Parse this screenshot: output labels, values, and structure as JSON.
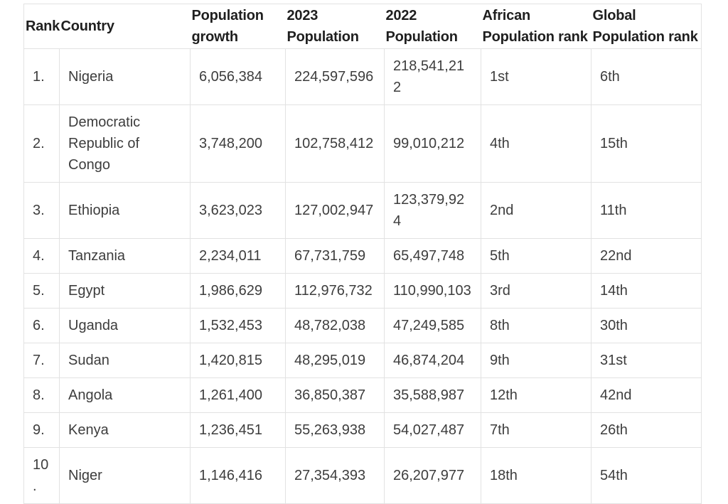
{
  "page": {
    "background": "#ffffff"
  },
  "theme": {
    "border_color": "#e2e2e2",
    "header_text_color": "#1f1f1f",
    "body_text_color": "#3d3d3d",
    "table_background": "#ffffff"
  },
  "chart_data": {
    "type": "table",
    "legend_position": "none",
    "grid": "cell-borders",
    "columns": [
      "Rank",
      "Country",
      "Population growth",
      "2023 Population",
      "2022 Population",
      "African Population rank",
      "Global Population rank"
    ],
    "header_display": [
      "Rank",
      "Country",
      "Population\ngrowth",
      "2023\nPopulation",
      "2022\nPopulation",
      "African\nPopulation rank",
      "Global\nPopulation rank"
    ],
    "rows": [
      [
        "1.",
        "Nigeria",
        "6,056,384",
        "224,597,596",
        "218,541,212",
        "1st",
        "6th"
      ],
      [
        "2.",
        "Democratic Republic of Congo",
        "3,748,200",
        "102,758,412",
        "99,010,212",
        "4th",
        "15th"
      ],
      [
        "3.",
        "Ethiopia",
        "3,623,023",
        "127,002,947",
        "123,379,924",
        "2nd",
        "11th"
      ],
      [
        "4.",
        "Tanzania",
        "2,234,011",
        "67,731,759",
        "65,497,748",
        "5th",
        "22nd"
      ],
      [
        "5.",
        "Egypt",
        "1,986,629",
        "112,976,732",
        "110,990,103",
        "3rd",
        "14th"
      ],
      [
        "6.",
        "Uganda",
        "1,532,453",
        "48,782,038",
        "47,249,585",
        "8th",
        "30th"
      ],
      [
        "7.",
        "Sudan",
        "1,420,815",
        "48,295,019",
        "46,874,204",
        "9th",
        "31st"
      ],
      [
        "8.",
        "Angola",
        "1,261,400",
        "36,850,387",
        "35,588,987",
        "12th",
        "42nd"
      ],
      [
        "9.",
        "Kenya",
        "1,236,451",
        "55,263,938",
        "54,027,487",
        "7th",
        "26th"
      ],
      [
        "10.",
        "Niger",
        "1,146,416",
        "27,354,393",
        "26,207,977",
        "18th",
        "54th"
      ]
    ],
    "numeric_rows": [
      {
        "rank": 1,
        "country": "Nigeria",
        "population_growth": 6056384,
        "population_2023": 224597596,
        "population_2022": 218541212,
        "african_population_rank": 1,
        "global_population_rank": 6
      },
      {
        "rank": 2,
        "country": "Democratic Republic of Congo",
        "population_growth": 3748200,
        "population_2023": 102758412,
        "population_2022": 99010212,
        "african_population_rank": 4,
        "global_population_rank": 15
      },
      {
        "rank": 3,
        "country": "Ethiopia",
        "population_growth": 3623023,
        "population_2023": 127002947,
        "population_2022": 123379924,
        "african_population_rank": 2,
        "global_population_rank": 11
      },
      {
        "rank": 4,
        "country": "Tanzania",
        "population_growth": 2234011,
        "population_2023": 67731759,
        "population_2022": 65497748,
        "african_population_rank": 5,
        "global_population_rank": 22
      },
      {
        "rank": 5,
        "country": "Egypt",
        "population_growth": 1986629,
        "population_2023": 112976732,
        "population_2022": 110990103,
        "african_population_rank": 3,
        "global_population_rank": 14
      },
      {
        "rank": 6,
        "country": "Uganda",
        "population_growth": 1532453,
        "population_2023": 48782038,
        "population_2022": 47249585,
        "african_population_rank": 8,
        "global_population_rank": 30
      },
      {
        "rank": 7,
        "country": "Sudan",
        "population_growth": 1420815,
        "population_2023": 48295019,
        "population_2022": 46874204,
        "african_population_rank": 9,
        "global_population_rank": 31
      },
      {
        "rank": 8,
        "country": "Angola",
        "population_growth": 1261400,
        "population_2023": 36850387,
        "population_2022": 35588987,
        "african_population_rank": 12,
        "global_population_rank": 42
      },
      {
        "rank": 9,
        "country": "Kenya",
        "population_growth": 1236451,
        "population_2023": 55263938,
        "population_2022": 54027487,
        "african_population_rank": 7,
        "global_population_rank": 26
      },
      {
        "rank": 10,
        "country": "Niger",
        "population_growth": 1146416,
        "population_2023": 27354393,
        "population_2022": 26207977,
        "african_population_rank": 18,
        "global_population_rank": 54
      }
    ]
  }
}
